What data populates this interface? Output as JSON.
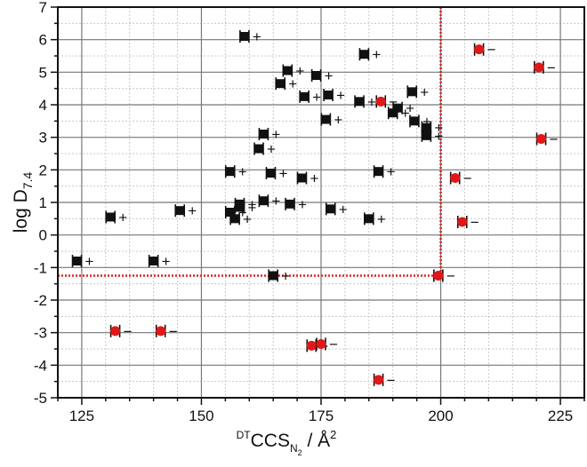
{
  "chart_data": {
    "type": "scatter",
    "title": "",
    "xlabel": "DTCCS_N2 / Å^2",
    "xlabel_parts": {
      "pre_sup": "DT",
      "main": "CCS",
      "sub": "N",
      "sub_sub": "2",
      "rest": " / Å",
      "sup": "2"
    },
    "ylabel": "log D7.4",
    "ylabel_parts": {
      "main": "log D",
      "sub": "7.4"
    },
    "xlim": [
      120,
      230
    ],
    "ylim": [
      -5,
      7
    ],
    "x_ticks": [
      125,
      150,
      175,
      200,
      225
    ],
    "y_ticks": [
      -5,
      -4,
      -3,
      -2,
      -1,
      0,
      1,
      2,
      3,
      4,
      5,
      6,
      7
    ],
    "grid": true,
    "legend": "none",
    "reference_lines": [
      {
        "orientation": "vertical",
        "x": 200,
        "y_range": [
          -1.25,
          7
        ],
        "color": "#e02020",
        "style": "dotted"
      },
      {
        "orientation": "horizontal",
        "y": -1.25,
        "x_range": [
          120,
          200
        ],
        "color": "#e02020",
        "style": "dotted"
      }
    ],
    "series": [
      {
        "name": "positive (+)",
        "marker": "black square with error bars",
        "color": "#000000",
        "label_glyph": "+",
        "points": [
          {
            "x": 124,
            "y": -0.8
          },
          {
            "x": 131,
            "y": 0.55
          },
          {
            "x": 140,
            "y": -0.8
          },
          {
            "x": 145.5,
            "y": 0.75
          },
          {
            "x": 156,
            "y": 1.95
          },
          {
            "x": 156,
            "y": 0.7
          },
          {
            "x": 157,
            "y": 0.5
          },
          {
            "x": 158,
            "y": 0.95
          },
          {
            "x": 158,
            "y": 0.85
          },
          {
            "x": 159,
            "y": 6.1
          },
          {
            "x": 162,
            "y": 2.65
          },
          {
            "x": 163,
            "y": 3.1
          },
          {
            "x": 163,
            "y": 1.05
          },
          {
            "x": 164.5,
            "y": 1.9
          },
          {
            "x": 165,
            "y": -1.25
          },
          {
            "x": 166.5,
            "y": 4.65
          },
          {
            "x": 168,
            "y": 5.05
          },
          {
            "x": 168.5,
            "y": 0.95
          },
          {
            "x": 171,
            "y": 1.75
          },
          {
            "x": 171.5,
            "y": 4.25
          },
          {
            "x": 174,
            "y": 4.9
          },
          {
            "x": 176,
            "y": 3.55
          },
          {
            "x": 176.5,
            "y": 4.3
          },
          {
            "x": 177,
            "y": 0.8
          },
          {
            "x": 183,
            "y": 4.1
          },
          {
            "x": 184,
            "y": 5.55
          },
          {
            "x": 185,
            "y": 0.5
          },
          {
            "x": 187,
            "y": 1.95
          },
          {
            "x": 190,
            "y": 3.75
          },
          {
            "x": 191,
            "y": 3.9
          },
          {
            "x": 194,
            "y": 4.4
          },
          {
            "x": 194.5,
            "y": 3.5
          },
          {
            "x": 197,
            "y": 3.3
          },
          {
            "x": 197,
            "y": 3.05
          }
        ]
      },
      {
        "name": "negative (−)",
        "marker": "red circle with error bars",
        "color": "#e01818",
        "label_glyph": "−",
        "points": [
          {
            "x": 132,
            "y": -2.95
          },
          {
            "x": 141.5,
            "y": -2.95
          },
          {
            "x": 173,
            "y": -3.4
          },
          {
            "x": 175,
            "y": -3.35
          },
          {
            "x": 187,
            "y": -4.45
          },
          {
            "x": 187.5,
            "y": 4.1
          },
          {
            "x": 199.5,
            "y": -1.25
          },
          {
            "x": 203,
            "y": 1.75
          },
          {
            "x": 204.5,
            "y": 0.4
          },
          {
            "x": 208,
            "y": 5.7
          },
          {
            "x": 220.5,
            "y": 5.15
          },
          {
            "x": 221,
            "y": 2.95
          }
        ]
      }
    ]
  },
  "labels": {
    "x_title_pre": "DT",
    "x_title_main": "CCS",
    "x_title_sub": "N",
    "x_title_subsub": "2",
    "x_title_rest": " / Å",
    "x_title_sup": "2",
    "y_title_main": "log D",
    "y_title_sub": "7.4"
  }
}
